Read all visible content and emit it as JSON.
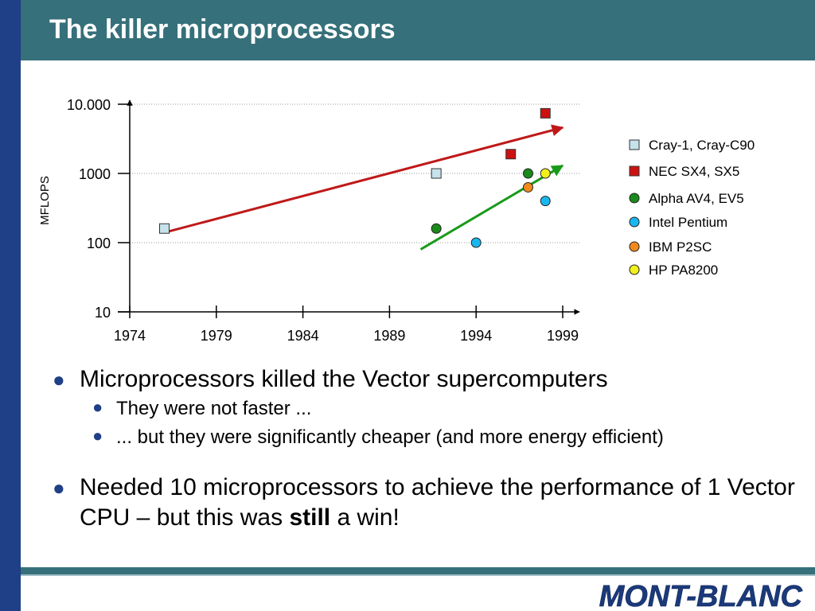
{
  "slide": {
    "title": "The killer microprocessors",
    "bullets": {
      "b1": "Microprocessors killed the Vector supercomputers",
      "b1_sub1": "They were not faster ...",
      "b1_sub2": "... but they were significantly cheaper (and more energy efficient)",
      "b2_part1": "Needed 10 microprocessors to achieve the performance of 1 Vector CPU – but this was ",
      "b2_bold": "still",
      "b2_part2": " a win!"
    },
    "logo_text": "MONT-BLANC"
  },
  "chart_data": {
    "type": "scatter",
    "ylabel": "MFLOPS",
    "xlim": [
      1974,
      1999
    ],
    "ylim": [
      10,
      10000
    ],
    "yscale": "log",
    "x_ticks": [
      "1974",
      "1979",
      "1984",
      "1989",
      "1994",
      "1999"
    ],
    "y_ticks": [
      {
        "value": 10,
        "label": "10"
      },
      {
        "value": 100,
        "label": "100"
      },
      {
        "value": 1000,
        "label": "1000"
      },
      {
        "value": 10000,
        "label": "10.000"
      }
    ],
    "grid": "horizontal dotted",
    "legend_position": "right",
    "series": [
      {
        "name": "Cray-1, Cray-C90",
        "marker": "square",
        "color": "#c6e2ea",
        "points": [
          [
            1976,
            160
          ],
          [
            1991.7,
            1000
          ]
        ]
      },
      {
        "name": "NEC SX4, SX5",
        "marker": "square",
        "color": "#cc1111",
        "points": [
          [
            1996,
            1900
          ],
          [
            1998,
            7400
          ]
        ]
      },
      {
        "name": "Alpha AV4, EV5",
        "marker": "circle",
        "color": "#1a8a1a",
        "points": [
          [
            1991.7,
            160
          ],
          [
            1997,
            1000
          ]
        ]
      },
      {
        "name": "Intel Pentium",
        "marker": "circle",
        "color": "#19b7f0",
        "points": [
          [
            1994,
            100
          ],
          [
            1998,
            400
          ]
        ]
      },
      {
        "name": "IBM P2SC",
        "marker": "circle",
        "color": "#f08a1c",
        "points": [
          [
            1997,
            630
          ]
        ]
      },
      {
        "name": "HP PA8200",
        "marker": "circle",
        "color": "#f2f01c",
        "points": [
          [
            1998,
            1000
          ]
        ]
      }
    ],
    "trend_lines": [
      {
        "color": "#c01818",
        "from": [
          1976,
          140
        ],
        "to": [
          1999,
          4600
        ]
      },
      {
        "color": "#1a9a1a",
        "from": [
          1990.8,
          80
        ],
        "to": [
          1999,
          1300
        ]
      }
    ]
  }
}
